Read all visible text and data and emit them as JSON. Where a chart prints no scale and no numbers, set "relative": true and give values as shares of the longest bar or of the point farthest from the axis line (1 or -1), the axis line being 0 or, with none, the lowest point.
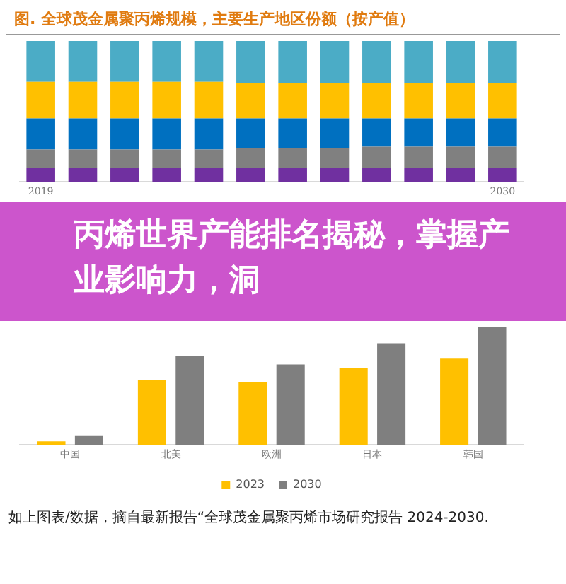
{
  "chart_data": [
    {
      "type": "bar",
      "title": "图.   全球茂金属聚丙烯规模，主要生产地区份额（按产值）",
      "stacked": true,
      "relative": true,
      "legend": false,
      "categories": [
        "2019",
        null,
        null,
        null,
        null,
        null,
        null,
        null,
        null,
        null,
        null,
        "2030"
      ],
      "series": [
        {
          "color": "#7030a0",
          "values": [
            0.1,
            0.1,
            0.1,
            0.1,
            0.1,
            0.1,
            0.1,
            0.1,
            0.1,
            0.1,
            0.1,
            0.1
          ]
        },
        {
          "color": "#808080",
          "values": [
            0.13,
            0.13,
            0.13,
            0.13,
            0.13,
            0.14,
            0.14,
            0.14,
            0.15,
            0.15,
            0.15,
            0.15
          ]
        },
        {
          "color": "#0070c0",
          "values": [
            0.22,
            0.22,
            0.22,
            0.22,
            0.22,
            0.21,
            0.21,
            0.21,
            0.2,
            0.2,
            0.2,
            0.2
          ]
        },
        {
          "color": "#ffc000",
          "values": [
            0.26,
            0.26,
            0.26,
            0.26,
            0.26,
            0.25,
            0.25,
            0.25,
            0.25,
            0.25,
            0.25,
            0.25
          ]
        },
        {
          "color": "#4bacc6",
          "values": [
            0.29,
            0.29,
            0.29,
            0.29,
            0.29,
            0.3,
            0.3,
            0.3,
            0.3,
            0.3,
            0.3,
            0.3
          ]
        }
      ],
      "annotations": [
        "丙烯世界产能排名揭秘，掌握产业影响力，洞"
      ]
    },
    {
      "type": "bar",
      "relative": true,
      "legend": "bottom",
      "categories": [
        "中国",
        "北美",
        "欧洲",
        "日本",
        "韩国"
      ],
      "series": [
        {
          "name": "2023",
          "color": "#ffc000",
          "values": [
            0.03,
            0.55,
            0.53,
            0.65,
            0.73
          ]
        },
        {
          "name": "2030",
          "color": "#7f7f7f",
          "values": [
            0.08,
            0.75,
            0.68,
            0.86,
            1
          ]
        }
      ],
      "annotations": [
        "如上图表/数据，摘自最新报告“全球茂金属聚丙烯市场研究报告 2024-2030."
      ]
    }
  ]
}
